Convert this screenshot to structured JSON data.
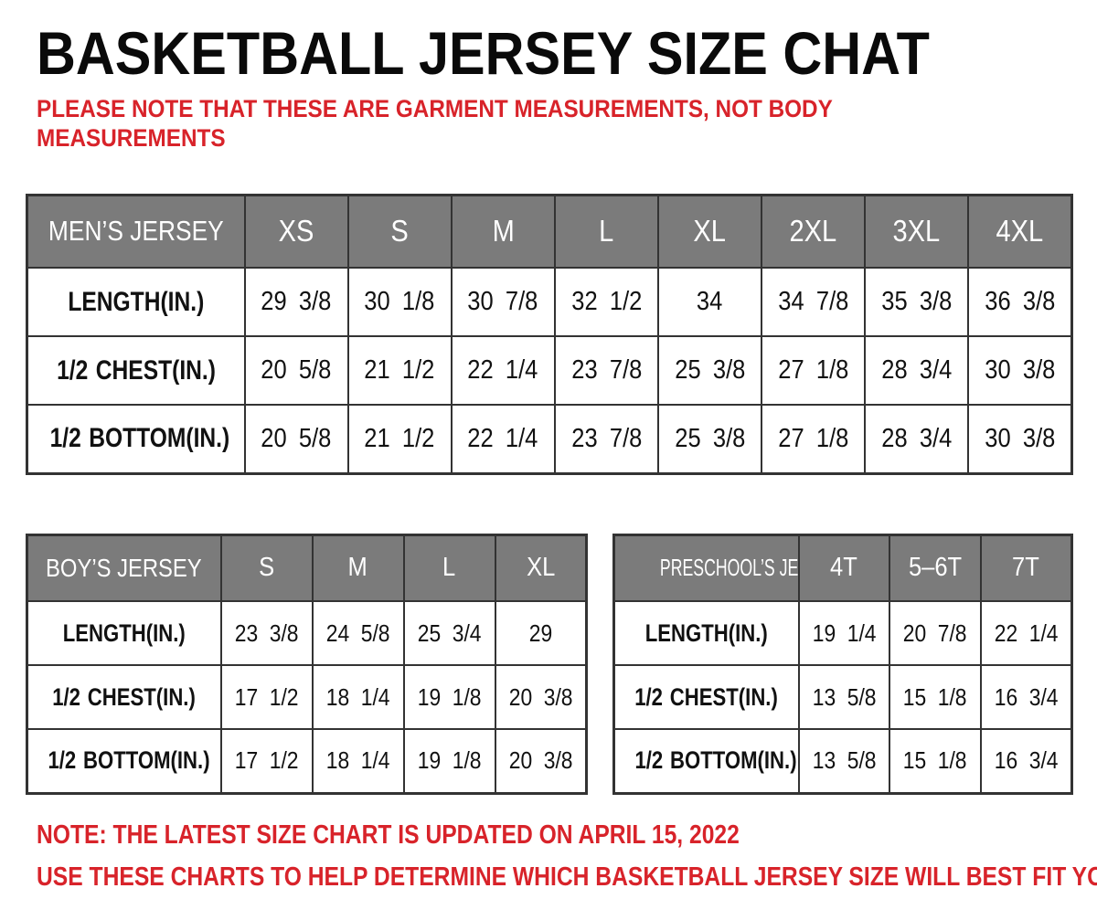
{
  "page": {
    "title": "BASKETBALL JERSEY SIZE CHAT",
    "subtitle_lines": [
      "PLEASE NOTE THAT THESE ARE GARMENT MEASUREMENTS, NOT BODY",
      "MEASUREMENTS"
    ],
    "footer_notes": [
      "NOTE: THE LATEST SIZE CHART IS UPDATED ON APRIL 15, 2022",
      "USE THESE CHARTS TO HELP DETERMINE WHICH  BASKETBALL JERSEY  SIZE WILL BEST FIT YOU."
    ],
    "accent_color": "#d8232a",
    "header_bg_color": "#7b7b7b",
    "table_border_color": "#333333"
  },
  "tables": [
    {
      "name": "mens-jersey",
      "header": [
        "MEN’S JERSEY",
        "XS",
        "S",
        "M",
        "L",
        "XL",
        "2XL",
        "3XL",
        "4XL"
      ],
      "rows": [
        {
          "label": "LENGTH(IN.)",
          "values": [
            "29 3/8",
            "30 1/8",
            "30 7/8",
            "32 1/2",
            "34",
            "34 7/8",
            "35 3/8",
            "36 3/8"
          ]
        },
        {
          "label": "1/2 CHEST(IN.)",
          "values": [
            "20 5/8",
            "21 1/2",
            "22 1/4",
            "23 7/8",
            "25 3/8",
            "27 1/8",
            "28 3/4",
            "30 3/8"
          ]
        },
        {
          "label": "1/2 BOTTOM(IN.)",
          "values": [
            "20 5/8",
            "21 1/2",
            "22 1/4",
            "23 7/8",
            "25 3/8",
            "27 1/8",
            "28 3/4",
            "30 3/8"
          ]
        }
      ]
    },
    {
      "name": "boys-jersey",
      "header": [
        "BOY’S JERSEY",
        "S",
        "M",
        "L",
        "XL"
      ],
      "rows": [
        {
          "label": "LENGTH(IN.)",
          "values": [
            "23 3/8",
            "24 5/8",
            "25 3/4",
            "29"
          ]
        },
        {
          "label": "1/2 CHEST(IN.)",
          "values": [
            "17 1/2",
            "18 1/4",
            "19 1/8",
            "20 3/8"
          ]
        },
        {
          "label": "1/2 BOTTOM(IN.)",
          "values": [
            "17 1/2",
            "18 1/4",
            "19 1/8",
            "20 3/8"
          ]
        }
      ]
    },
    {
      "name": "preschools-jersey",
      "header": [
        "PRESCHOOL’S JERSEY",
        "4T",
        "5–6T",
        "7T"
      ],
      "rows": [
        {
          "label": "LENGTH(IN.)",
          "values": [
            "19 1/4",
            "20 7/8",
            "22 1/4"
          ]
        },
        {
          "label": "1/2 CHEST(IN.)",
          "values": [
            "13 5/8",
            "15 1/8",
            "16 3/4"
          ]
        },
        {
          "label": "1/2 BOTTOM(IN.)",
          "values": [
            "13 5/8",
            "15 1/8",
            "16 3/4"
          ]
        }
      ]
    }
  ]
}
